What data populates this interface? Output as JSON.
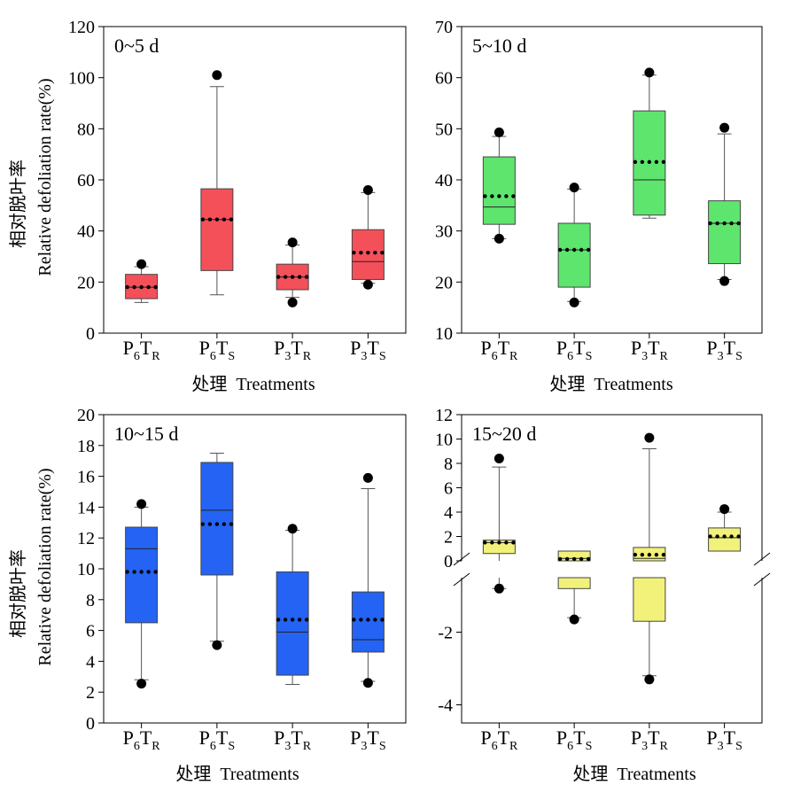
{
  "y_label_cn": "相对脱叶率",
  "y_label_en": "Relative defoliation rate(%)",
  "x_label": "处理  Treatments",
  "categories": [
    {
      "base": "P",
      "sub1": "6",
      "mid": "T",
      "sub2": "R"
    },
    {
      "base": "P",
      "sub1": "6",
      "mid": "T",
      "sub2": "S"
    },
    {
      "base": "P",
      "sub1": "3",
      "mid": "T",
      "sub2": "R"
    },
    {
      "base": "P",
      "sub1": "3",
      "mid": "T",
      "sub2": "S"
    }
  ],
  "chart_data": [
    {
      "type": "box",
      "title": "0~5 d",
      "color": "#f4505a",
      "ylim": [
        0,
        120
      ],
      "yticks": [
        0,
        20,
        40,
        60,
        80,
        100,
        120
      ],
      "boxes": [
        {
          "whisker_low": 12,
          "q1": 13.5,
          "median": 18,
          "q3": 23,
          "whisker_high": 26,
          "mean": 18,
          "out_low": null,
          "out_high": 27
        },
        {
          "whisker_low": 15,
          "q1": 24.5,
          "median": 44.5,
          "q3": 56.5,
          "whisker_high": 96.5,
          "mean": 44.5,
          "out_low": null,
          "out_high": 101
        },
        {
          "whisker_low": 14,
          "q1": 17,
          "median": 22,
          "q3": 27,
          "whisker_high": 34.5,
          "mean": 22,
          "out_low": 12,
          "out_high": 35.5
        },
        {
          "whisker_low": 19.5,
          "q1": 21,
          "median": 28,
          "q3": 40.5,
          "whisker_high": 55,
          "mean": 31.5,
          "out_low": 19,
          "out_high": 56
        }
      ]
    },
    {
      "type": "box",
      "title": "5~10 d",
      "color": "#5ee56e",
      "ylim": [
        10,
        70
      ],
      "yticks": [
        10,
        20,
        30,
        40,
        50,
        60,
        70
      ],
      "boxes": [
        {
          "whisker_low": 28.5,
          "q1": 31.3,
          "median": 34.7,
          "q3": 44.5,
          "whisker_high": 48.5,
          "mean": 36.8,
          "out_low": 28.5,
          "out_high": 49.3
        },
        {
          "whisker_low": 16.2,
          "q1": 19,
          "median": 26.3,
          "q3": 31.5,
          "whisker_high": 38.2,
          "mean": 26.3,
          "out_low": 16,
          "out_high": 38.5
        },
        {
          "whisker_low": 32.5,
          "q1": 33.1,
          "median": 40,
          "q3": 53.5,
          "whisker_high": 60.5,
          "mean": 43.5,
          "out_low": null,
          "out_high": 61
        },
        {
          "whisker_low": 20.5,
          "q1": 23.6,
          "median": 31.5,
          "q3": 35.9,
          "whisker_high": 49,
          "mean": 31.5,
          "out_low": 20.2,
          "out_high": 50.2
        }
      ]
    },
    {
      "type": "box",
      "title": "10~15 d",
      "color": "#2463f3",
      "ylim": [
        0,
        20
      ],
      "yticks": [
        0,
        2,
        4,
        6,
        8,
        10,
        12,
        14,
        16,
        18,
        20
      ],
      "boxes": [
        {
          "whisker_low": 2.8,
          "q1": 6.5,
          "median": 11.3,
          "q3": 12.7,
          "whisker_high": 14,
          "mean": 9.8,
          "out_low": 2.55,
          "out_high": 14.2
        },
        {
          "whisker_low": 5.3,
          "q1": 9.6,
          "median": 13.8,
          "q3": 16.9,
          "whisker_high": 17.5,
          "mean": 12.9,
          "out_low": 5.05,
          "out_high": null
        },
        {
          "whisker_low": 2.5,
          "q1": 3.1,
          "median": 5.9,
          "q3": 9.8,
          "whisker_high": 12.5,
          "mean": 6.7,
          "out_low": null,
          "out_high": 12.6
        },
        {
          "whisker_low": 2.7,
          "q1": 4.6,
          "median": 5.4,
          "q3": 8.5,
          "whisker_high": 15.2,
          "mean": 6.7,
          "out_low": 2.6,
          "out_high": 15.9
        }
      ]
    },
    {
      "type": "box",
      "title": "15~20 d",
      "color": "#f2f27a",
      "broken_axis": true,
      "upper_ylim": [
        0,
        12
      ],
      "upper_yticks": [
        0,
        2,
        4,
        6,
        8,
        10,
        12
      ],
      "lower_ylim": [
        -4.5,
        -0.5
      ],
      "lower_yticks": [
        -2,
        -4
      ],
      "boxes": [
        {
          "whisker_low": -0.8,
          "q1": 0.6,
          "median": 1.5,
          "q3": 1.7,
          "whisker_high": 7.7,
          "mean": 1.5,
          "out_low": -0.8,
          "out_high": 8.4
        },
        {
          "whisker_low": -1.6,
          "q1": -0.8,
          "median": 0.2,
          "q3": 0.8,
          "whisker_high": 0.8,
          "mean": 0.15,
          "out_low": -1.65,
          "out_high": null
        },
        {
          "whisker_low": -3.2,
          "q1": -1.7,
          "median": 0.2,
          "q3": 1.1,
          "whisker_high": 9.2,
          "mean": 0.5,
          "out_low": -3.3,
          "out_high": 10.1
        },
        {
          "whisker_low": 0.8,
          "q1": 0.8,
          "median": 1.9,
          "q3": 2.7,
          "whisker_high": 4,
          "mean": 2,
          "out_low": null,
          "out_high": 4.25
        }
      ]
    }
  ]
}
